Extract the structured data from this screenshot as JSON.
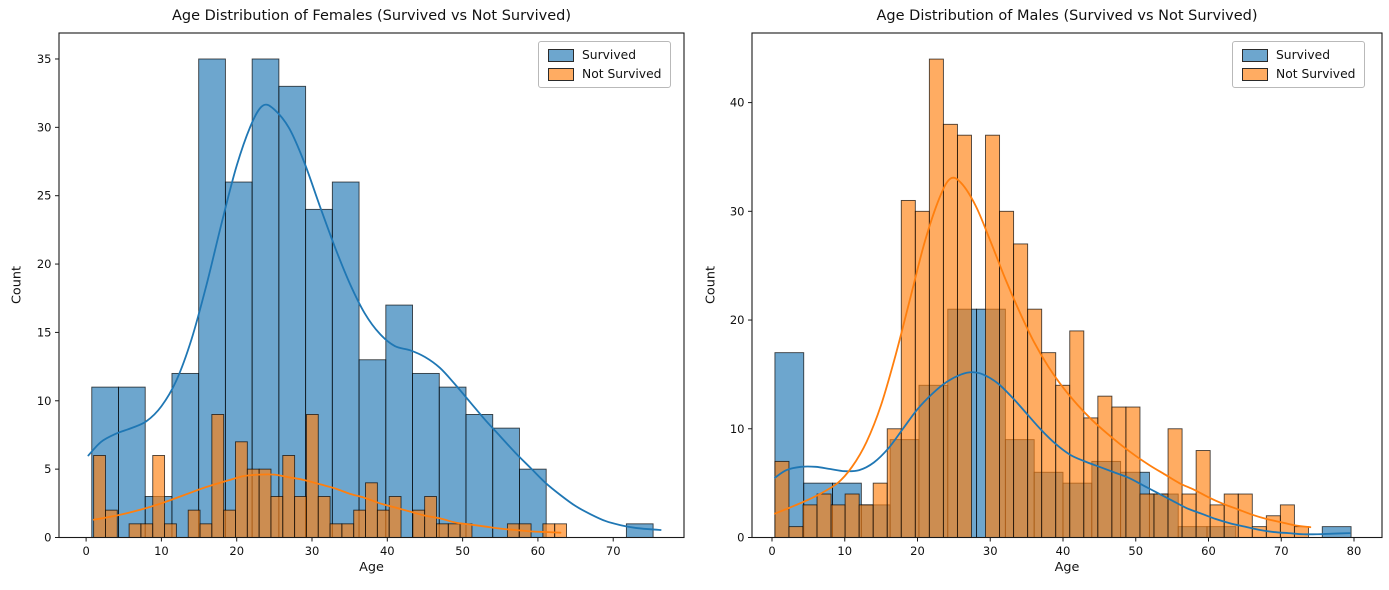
{
  "figure": {
    "background": "#ffffff"
  },
  "colors": {
    "survived": "#1f77b4",
    "not_survived": "#ff7f0e",
    "fill_alpha": 0.65,
    "bar_edge": "#000000",
    "axis_color": "#1a1a1a",
    "text_color": "#111111",
    "legend_border": "#b9b9b9"
  },
  "chart_data": [
    {
      "type": "histogram+kde",
      "title": "Age Distribution of Females (Survived vs Not Survived)",
      "xlabel": "Age",
      "ylabel": "Count",
      "legend_labels": [
        "Survived",
        "Not Survived"
      ],
      "legend_position": "upper right",
      "grid": false,
      "xticks": [
        0,
        10,
        20,
        30,
        40,
        50,
        60,
        70
      ],
      "yticks": [
        0,
        5,
        10,
        15,
        20,
        25,
        30,
        35
      ],
      "xlim": [
        -3.6,
        79.4
      ],
      "ylim": [
        0,
        36.9
      ],
      "series": [
        {
          "name": "Survived",
          "color_key": "survived",
          "bin_start": 0.75,
          "bin_width": 3.55,
          "counts": [
            11,
            11,
            3,
            12,
            35,
            26,
            35,
            33,
            24,
            26,
            13,
            17,
            12,
            11,
            9,
            8,
            5,
            0,
            0,
            0,
            1
          ]
        },
        {
          "name": "Not Survived",
          "color_key": "not_survived",
          "bin_start": 1.0,
          "bin_width": 1.57,
          "counts": [
            6,
            2,
            0,
            1,
            1,
            6,
            1,
            0,
            2,
            1,
            9,
            2,
            7,
            5,
            5,
            3,
            6,
            3,
            9,
            3,
            1,
            1,
            2,
            4,
            2,
            3,
            0,
            2,
            3,
            1,
            1,
            1,
            0,
            0,
            0,
            1,
            1,
            0,
            1,
            1
          ]
        }
      ],
      "kde": [
        {
          "name": "Survived",
          "color_key": "survived",
          "points": [
            [
              0.3,
              6.0
            ],
            [
              2,
              7.0
            ],
            [
              4,
              7.6
            ],
            [
              6,
              8.0
            ],
            [
              8,
              8.5
            ],
            [
              10,
              9.6
            ],
            [
              12,
              11.5
            ],
            [
              14,
              14.5
            ],
            [
              16,
              18.5
            ],
            [
              18,
              23.0
            ],
            [
              20,
              27.2
            ],
            [
              22,
              30.3
            ],
            [
              23.5,
              31.6
            ],
            [
              25,
              31.3
            ],
            [
              27,
              29.9
            ],
            [
              29,
              27.4
            ],
            [
              31,
              24.3
            ],
            [
              33,
              21.3
            ],
            [
              35,
              18.6
            ],
            [
              37,
              16.4
            ],
            [
              39,
              14.9
            ],
            [
              41,
              14.0
            ],
            [
              43,
              13.7
            ],
            [
              45,
              13.2
            ],
            [
              47,
              12.4
            ],
            [
              49,
              11.2
            ],
            [
              51,
              9.9
            ],
            [
              53,
              8.6
            ],
            [
              55,
              7.4
            ],
            [
              57,
              6.2
            ],
            [
              59,
              5.1
            ],
            [
              61,
              4.0
            ],
            [
              63,
              3.1
            ],
            [
              65,
              2.3
            ],
            [
              67,
              1.7
            ],
            [
              69,
              1.2
            ],
            [
              71,
              0.9
            ],
            [
              73,
              0.7
            ],
            [
              75,
              0.6
            ],
            [
              76.3,
              0.55
            ]
          ]
        },
        {
          "name": "Not Survived",
          "color_key": "not_survived",
          "points": [
            [
              1,
              1.3
            ],
            [
              4,
              1.6
            ],
            [
              7,
              2.0
            ],
            [
              10,
              2.5
            ],
            [
              13,
              3.1
            ],
            [
              16,
              3.7
            ],
            [
              19,
              4.2
            ],
            [
              21,
              4.5
            ],
            [
              23,
              4.6
            ],
            [
              25,
              4.6
            ],
            [
              27,
              4.4
            ],
            [
              29,
              4.2
            ],
            [
              31,
              3.9
            ],
            [
              33,
              3.6
            ],
            [
              35,
              3.2
            ],
            [
              37,
              2.9
            ],
            [
              39,
              2.5
            ],
            [
              41,
              2.2
            ],
            [
              43,
              1.9
            ],
            [
              45,
              1.6
            ],
            [
              47,
              1.4
            ],
            [
              49,
              1.1
            ],
            [
              51,
              0.95
            ],
            [
              53,
              0.8
            ],
            [
              55,
              0.65
            ],
            [
              57,
              0.55
            ],
            [
              59,
              0.45
            ],
            [
              61,
              0.4
            ],
            [
              63,
              0.35
            ]
          ]
        }
      ]
    },
    {
      "type": "histogram+kde",
      "title": "Age Distribution of Males (Survived vs Not Survived)",
      "xlabel": "Age",
      "ylabel": "Count",
      "legend_labels": [
        "Survived",
        "Not Survived"
      ],
      "legend_position": "upper right",
      "grid": false,
      "xticks": [
        0,
        10,
        20,
        30,
        40,
        50,
        60,
        70,
        80
      ],
      "yticks": [
        0,
        10,
        20,
        30,
        40
      ],
      "xlim": [
        -2.75,
        83.85
      ],
      "ylim": [
        0,
        46.4
      ],
      "series": [
        {
          "name": "Survived",
          "color_key": "survived",
          "bin_start": 0.4,
          "bin_width": 3.96,
          "counts": [
            17,
            5,
            5,
            3,
            9,
            14,
            21,
            21,
            9,
            6,
            5,
            7,
            6,
            4,
            1,
            1,
            0,
            0,
            0,
            1
          ]
        },
        {
          "name": "Not Survived",
          "color_key": "not_survived",
          "bin_start": 0.4,
          "bin_width": 1.93,
          "counts": [
            7,
            1,
            3,
            4,
            3,
            4,
            3,
            5,
            10,
            31,
            30,
            44,
            38,
            37,
            0,
            37,
            30,
            27,
            21,
            17,
            14,
            19,
            11,
            13,
            12,
            12,
            4,
            4,
            10,
            4,
            8,
            3,
            4,
            4,
            1,
            2,
            3,
            1
          ]
        }
      ],
      "kde": [
        {
          "name": "Survived",
          "color_key": "survived",
          "points": [
            [
              0.4,
              5.5
            ],
            [
              2,
              6.2
            ],
            [
              4,
              6.5
            ],
            [
              6,
              6.5
            ],
            [
              8,
              6.3
            ],
            [
              10,
              6.1
            ],
            [
              12,
              6.2
            ],
            [
              14,
              6.9
            ],
            [
              16,
              8.2
            ],
            [
              18,
              10.0
            ],
            [
              20,
              11.8
            ],
            [
              22,
              13.2
            ],
            [
              24,
              14.3
            ],
            [
              26,
              15.0
            ],
            [
              27.5,
              15.2
            ],
            [
              29,
              15.0
            ],
            [
              31,
              14.2
            ],
            [
              33,
              12.9
            ],
            [
              35,
              11.4
            ],
            [
              37,
              9.9
            ],
            [
              39,
              8.6
            ],
            [
              41,
              7.6
            ],
            [
              43,
              7.0
            ],
            [
              45,
              6.5
            ],
            [
              47,
              6.0
            ],
            [
              49,
              5.5
            ],
            [
              51,
              4.8
            ],
            [
              53,
              4.1
            ],
            [
              55,
              3.4
            ],
            [
              57,
              2.7
            ],
            [
              59,
              2.2
            ],
            [
              61,
              1.7
            ],
            [
              63,
              1.3
            ],
            [
              65,
              1.0
            ],
            [
              67,
              0.7
            ],
            [
              69,
              0.5
            ],
            [
              71,
              0.4
            ],
            [
              73,
              0.3
            ],
            [
              75,
              0.3
            ],
            [
              77,
              0.35
            ],
            [
              79.4,
              0.4
            ]
          ]
        },
        {
          "name": "Not Survived",
          "color_key": "not_survived",
          "points": [
            [
              0.4,
              2.2
            ],
            [
              3,
              2.9
            ],
            [
              6,
              3.8
            ],
            [
              9,
              5.0
            ],
            [
              11,
              6.5
            ],
            [
              13,
              8.8
            ],
            [
              15,
              12.2
            ],
            [
              17,
              16.8
            ],
            [
              19,
              22.0
            ],
            [
              21,
              27.2
            ],
            [
              23,
              31.2
            ],
            [
              24.5,
              33.0
            ],
            [
              26,
              32.6
            ],
            [
              28,
              30.5
            ],
            [
              30,
              27.3
            ],
            [
              32,
              23.9
            ],
            [
              34,
              20.8
            ],
            [
              36,
              18.0
            ],
            [
              38,
              15.7
            ],
            [
              40,
              13.8
            ],
            [
              42,
              12.2
            ],
            [
              44,
              10.8
            ],
            [
              46,
              9.6
            ],
            [
              48,
              8.5
            ],
            [
              50,
              7.5
            ],
            [
              52,
              6.6
            ],
            [
              54,
              5.8
            ],
            [
              56,
              5.0
            ],
            [
              58,
              4.4
            ],
            [
              60,
              3.7
            ],
            [
              62,
              3.1
            ],
            [
              64,
              2.6
            ],
            [
              66,
              2.1
            ],
            [
              68,
              1.7
            ],
            [
              70,
              1.4
            ],
            [
              72,
              1.1
            ],
            [
              74,
              0.95
            ]
          ]
        }
      ]
    }
  ]
}
